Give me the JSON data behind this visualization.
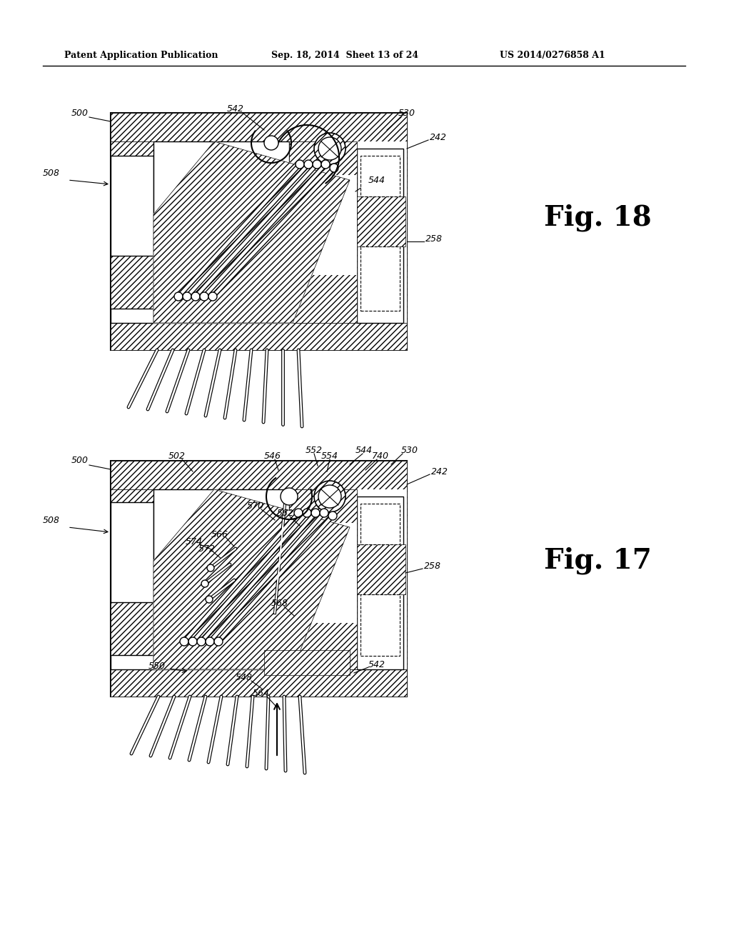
{
  "background_color": "#ffffff",
  "header_text": "Patent Application Publication",
  "header_date": "Sep. 18, 2014  Sheet 13 of 24",
  "header_patent": "US 2014/0276858 A1",
  "fig18_label": "Fig. 18",
  "fig17_label": "Fig. 17",
  "line_color": "#000000",
  "line_width": 1.2
}
